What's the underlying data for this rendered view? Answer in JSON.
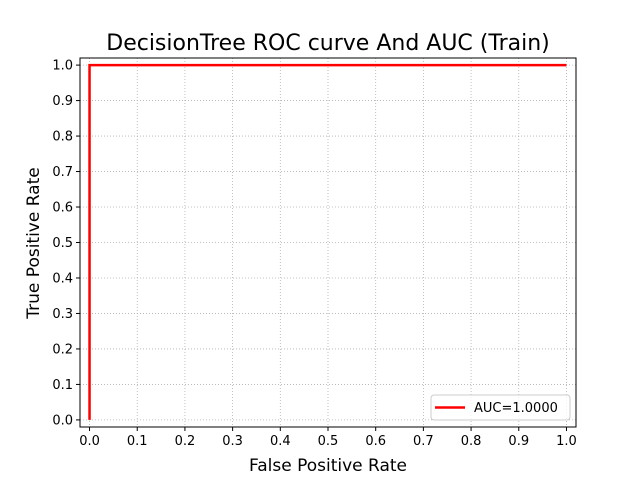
{
  "chart_data": {
    "type": "line",
    "title": "DecisionTree ROC curve And AUC (Train)",
    "xlabel": "False Positive Rate",
    "ylabel": "True Positive Rate",
    "xlim": [
      -0.02,
      1.02
    ],
    "ylim": [
      -0.02,
      1.02
    ],
    "xticks": [
      0.0,
      0.1,
      0.2,
      0.3,
      0.4,
      0.5,
      0.6,
      0.7,
      0.8,
      0.9,
      1.0
    ],
    "yticks": [
      0.0,
      0.1,
      0.2,
      0.3,
      0.4,
      0.5,
      0.6,
      0.7,
      0.8,
      0.9,
      1.0
    ],
    "xtick_labels": [
      "0.0",
      "0.1",
      "0.2",
      "0.3",
      "0.4",
      "0.5",
      "0.6",
      "0.7",
      "0.8",
      "0.9",
      "1.0"
    ],
    "ytick_labels": [
      "0.0",
      "0.1",
      "0.2",
      "0.3",
      "0.4",
      "0.5",
      "0.6",
      "0.7",
      "0.8",
      "0.9",
      "1.0"
    ],
    "grid": true,
    "grid_style": "dotted",
    "legend_position": "lower-right",
    "series": [
      {
        "name": "AUC=1.0000",
        "color": "#ff0000",
        "x": [
          0.0,
          0.0,
          1.0
        ],
        "y": [
          0.0,
          1.0,
          1.0
        ]
      }
    ]
  }
}
